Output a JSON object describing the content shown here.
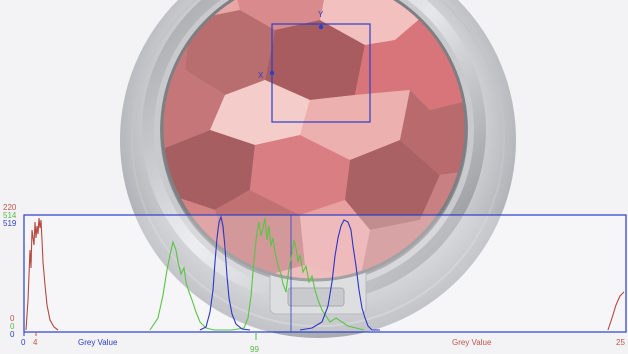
{
  "roi": {
    "x_label": "X",
    "y_label": "Y"
  },
  "histogram": {
    "y_max_red": "220",
    "y_max_green": "514",
    "y_max_blue": "519",
    "y_min_red": "0",
    "y_min_green": "0",
    "y_min_blue": "0",
    "x_start": "0",
    "x_tick_red": "4",
    "x_tick_green": "99",
    "x_end": "25",
    "xlabel_left": "Grey Value",
    "xlabel_right": "Grey Value"
  },
  "colors": {
    "roi": "#2b3ec9",
    "red_channel": "#b8473f",
    "green_channel": "#58c545",
    "blue_channel": "#2c35c9"
  }
}
